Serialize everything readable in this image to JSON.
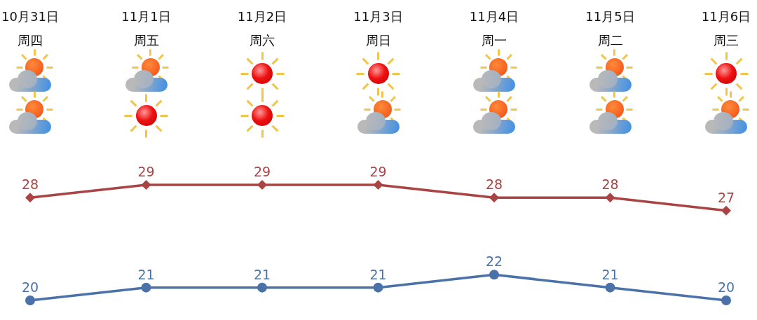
{
  "chart_data": {
    "type": "line",
    "categories": [
      "10月31日周四",
      "11月1日周五",
      "11月2日周六",
      "11月3日周日",
      "11月4日周一",
      "11月5日周二",
      "11月6日周三"
    ],
    "series": [
      {
        "color": "#a94444",
        "marker": "diamond",
        "values": [
          28,
          29,
          29,
          29,
          28,
          28,
          27
        ]
      },
      {
        "color": "#4a72a8",
        "marker": "circle",
        "values": [
          20,
          21,
          21,
          21,
          22,
          21,
          20
        ]
      }
    ],
    "data_labels": true,
    "line_style": "solid"
  }
}
